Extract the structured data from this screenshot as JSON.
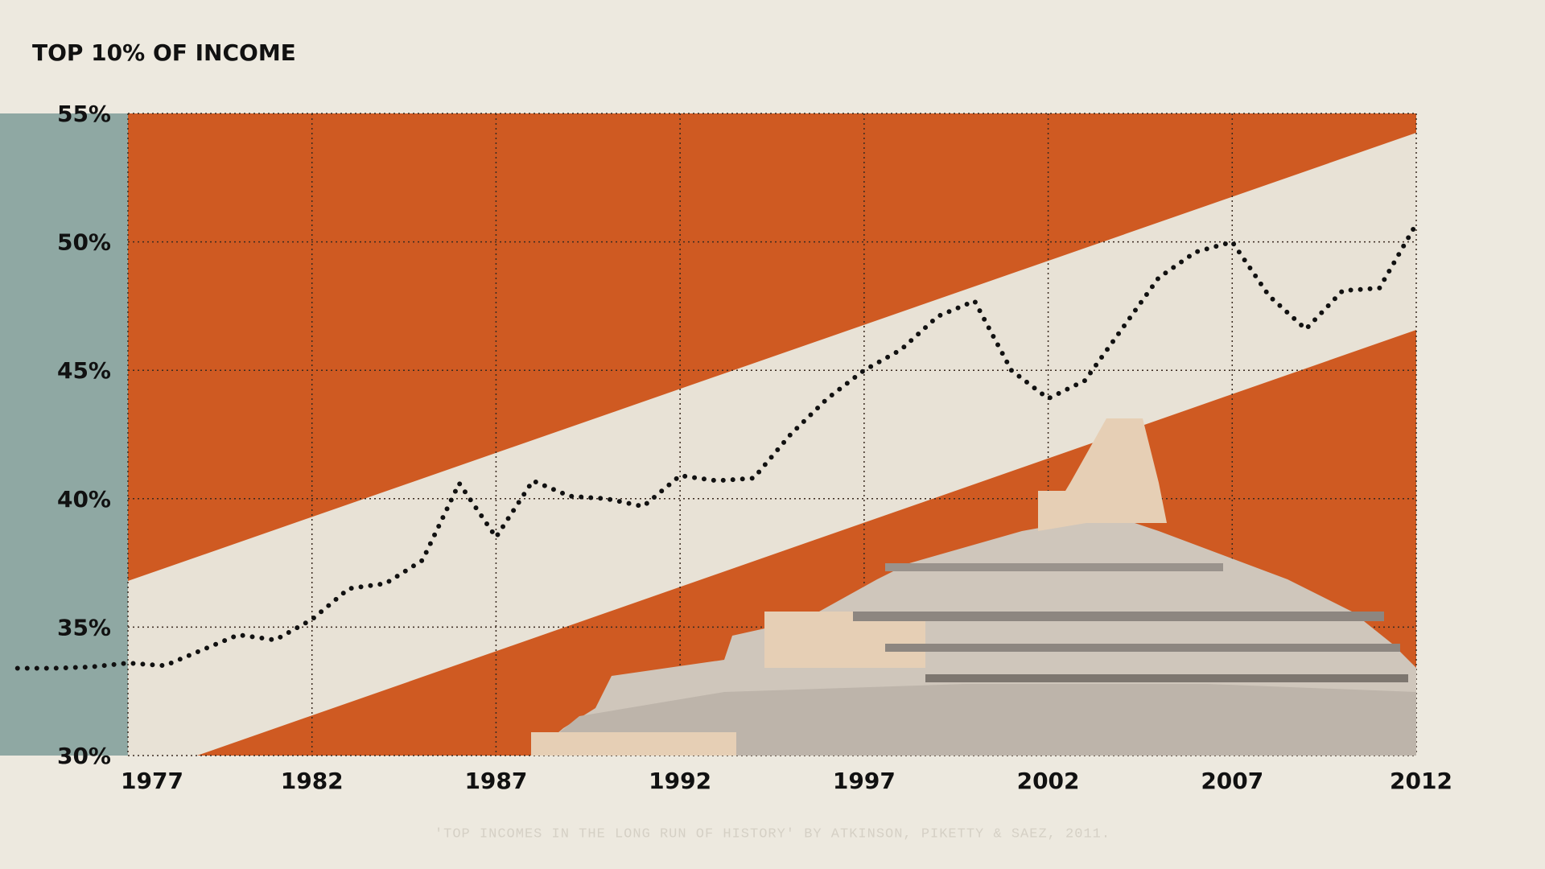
{
  "chart_data": {
    "type": "line",
    "title": "TOP 10% OF INCOME",
    "source": "'TOP INCOMES IN THE LONG RUN OF HISTORY' BY ATKINSON, PIKETTY & SAEZ, 2011.",
    "x": [
      1974,
      1975,
      1976,
      1977,
      1978,
      1979,
      1980,
      1981,
      1982,
      1983,
      1984,
      1985,
      1986,
      1987,
      1988,
      1989,
      1990,
      1991,
      1992,
      1993,
      1994,
      1995,
      1996,
      1997,
      1998,
      1999,
      2000,
      2001,
      2002,
      2003,
      2004,
      2005,
      2006,
      2007,
      2008,
      2009,
      2010,
      2011,
      2012
    ],
    "series": [
      {
        "color": "#111111",
        "values": [
          33.4,
          33.4,
          33.45,
          33.6,
          33.5,
          34.1,
          34.7,
          34.5,
          35.3,
          36.5,
          36.7,
          37.6,
          40.6,
          38.5,
          40.7,
          40.1,
          40.0,
          39.7,
          40.9,
          40.7,
          40.8,
          42.5,
          43.9,
          45.0,
          45.8,
          47.1,
          47.7,
          45.0,
          43.9,
          44.6,
          46.6,
          48.6,
          49.6,
          50.0,
          47.9,
          46.6,
          48.1,
          48.2,
          50.7
        ]
      }
    ],
    "xlim": [
      1977,
      2012
    ],
    "xticks": [
      1977,
      1982,
      1987,
      1992,
      1997,
      2002,
      2007,
      2012
    ],
    "ylim": [
      30,
      55
    ],
    "yticks": [
      {
        "value": 30,
        "label": "30%"
      },
      {
        "value": 35,
        "label": "35%"
      },
      {
        "value": 40,
        "label": "40%"
      },
      {
        "value": 45,
        "label": "45%"
      },
      {
        "value": 50,
        "label": "50%"
      },
      {
        "value": 55,
        "label": "55%"
      }
    ],
    "grid": true
  }
}
